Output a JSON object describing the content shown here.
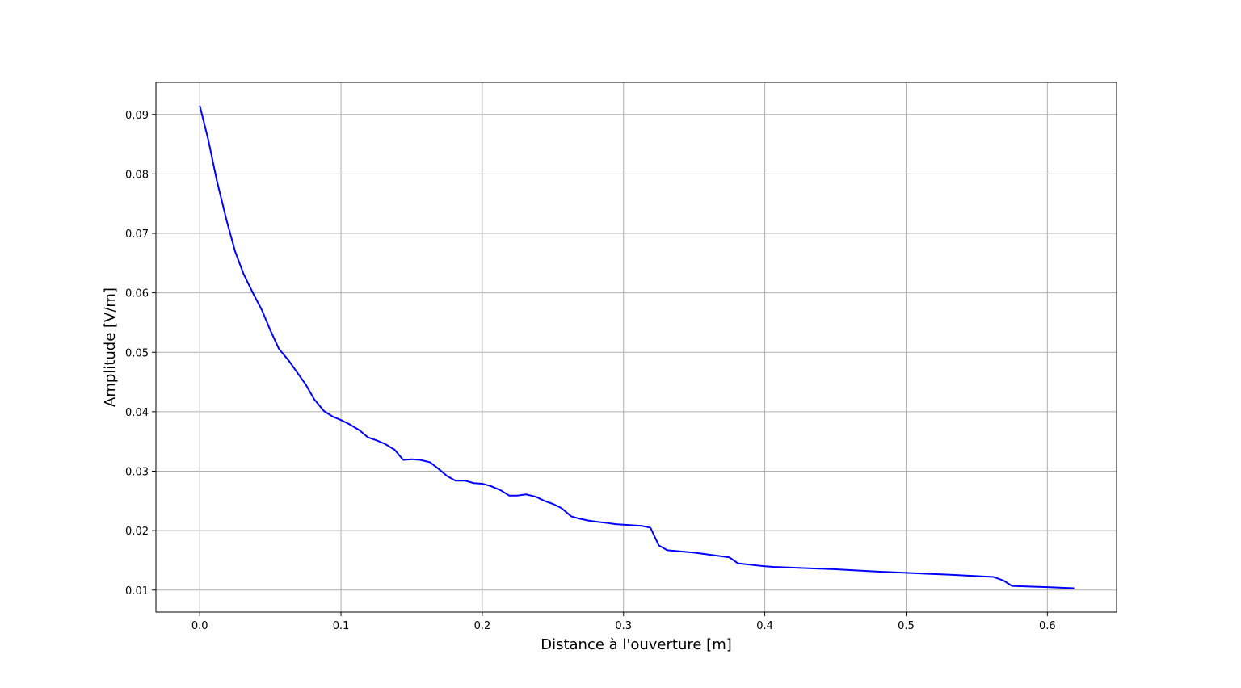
{
  "chart_data": {
    "type": "line",
    "title": "",
    "xlabel": "Distance à l'ouverture [m]",
    "ylabel": "Amplitude [V/m]",
    "xlim": [
      -0.031,
      0.649
    ],
    "ylim": [
      0.0063,
      0.0954
    ],
    "grid": true,
    "x_ticks": [
      0.0,
      0.1,
      0.2,
      0.3,
      0.4,
      0.5,
      0.6
    ],
    "x_tick_labels": [
      "0.0",
      "0.1",
      "0.2",
      "0.3",
      "0.4",
      "0.5",
      "0.6"
    ],
    "y_ticks": [
      0.01,
      0.02,
      0.03,
      0.04,
      0.05,
      0.06,
      0.07,
      0.08,
      0.09
    ],
    "y_tick_labels": [
      "0.01",
      "0.02",
      "0.03",
      "0.04",
      "0.05",
      "0.06",
      "0.07",
      "0.08",
      "0.09"
    ],
    "series": [
      {
        "name": "Amplitude",
        "color": "#0000ff",
        "x": [
          0.0,
          0.006,
          0.012,
          0.019,
          0.025,
          0.031,
          0.038,
          0.044,
          0.05,
          0.056,
          0.063,
          0.069,
          0.075,
          0.081,
          0.088,
          0.094,
          0.1,
          0.106,
          0.113,
          0.119,
          0.125,
          0.131,
          0.138,
          0.144,
          0.15,
          0.156,
          0.163,
          0.169,
          0.175,
          0.181,
          0.188,
          0.194,
          0.2,
          0.206,
          0.213,
          0.219,
          0.225,
          0.231,
          0.238,
          0.244,
          0.25,
          0.256,
          0.263,
          0.269,
          0.275,
          0.281,
          0.288,
          0.294,
          0.3,
          0.313,
          0.319,
          0.325,
          0.331,
          0.35,
          0.375,
          0.381,
          0.4,
          0.406,
          0.45,
          0.48,
          0.5,
          0.53,
          0.562,
          0.569,
          0.575,
          0.6,
          0.619
        ],
        "y": [
          0.0915,
          0.0858,
          0.079,
          0.0722,
          0.067,
          0.0632,
          0.0598,
          0.0571,
          0.0537,
          0.0506,
          0.0486,
          0.0466,
          0.0446,
          0.0421,
          0.0401,
          0.0392,
          0.0386,
          0.0379,
          0.0369,
          0.0357,
          0.0352,
          0.0346,
          0.0336,
          0.0319,
          0.032,
          0.0319,
          0.0315,
          0.0304,
          0.0292,
          0.0284,
          0.0284,
          0.028,
          0.0279,
          0.0275,
          0.0268,
          0.0259,
          0.0259,
          0.0261,
          0.0257,
          0.025,
          0.0245,
          0.0238,
          0.0224,
          0.022,
          0.0217,
          0.0215,
          0.0213,
          0.0211,
          0.021,
          0.0208,
          0.0205,
          0.0175,
          0.0167,
          0.0163,
          0.0155,
          0.0145,
          0.014,
          0.0139,
          0.0135,
          0.0131,
          0.0129,
          0.0126,
          0.0122,
          0.0116,
          0.0107,
          0.0105,
          0.0103
        ]
      }
    ]
  }
}
